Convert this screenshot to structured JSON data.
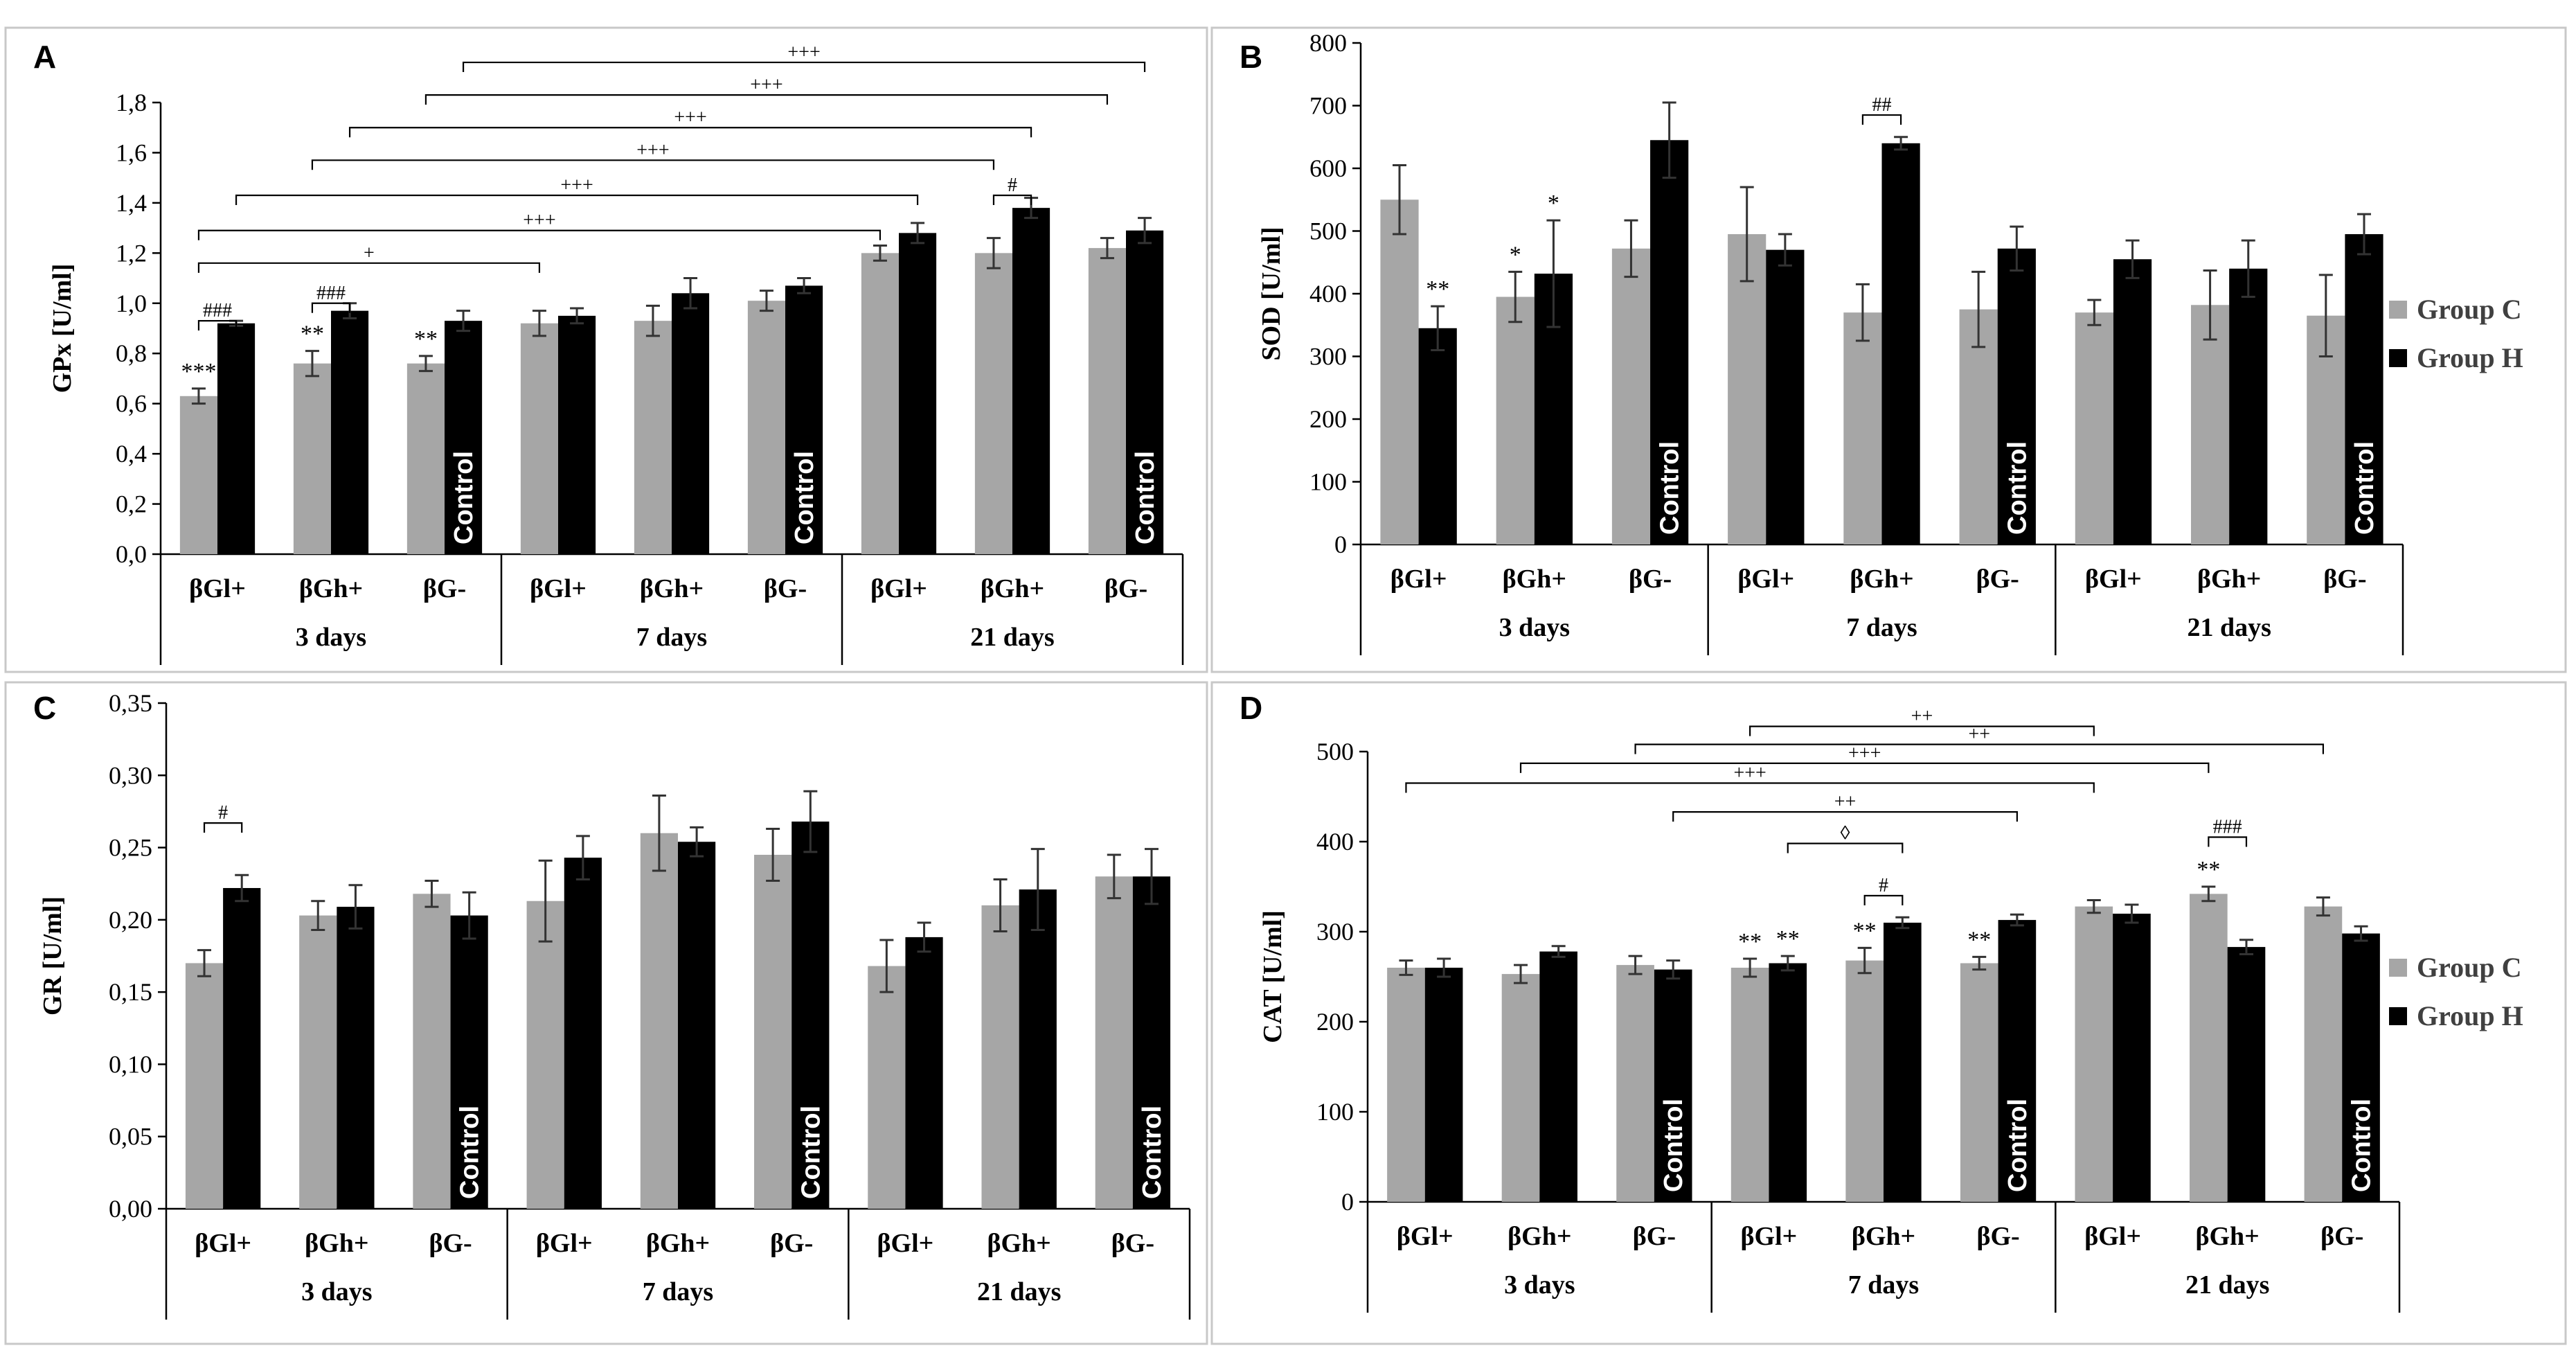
{
  "colors": {
    "group_c": "#a6a6a6",
    "group_h": "#000000"
  },
  "chart_data": [
    {
      "panel": "A",
      "type": "bar",
      "ylabel": "GPx [U/ml]",
      "ylim": [
        0,
        1.8
      ],
      "yticks": [
        "0,0",
        "0,2",
        "0,4",
        "0,6",
        "0,8",
        "1,0",
        "1,2",
        "1,4",
        "1,6",
        "1,8"
      ],
      "categories": [
        "βGl+",
        "βGh+",
        "βG-",
        "βGl+",
        "βGh+",
        "βG-",
        "βGl+",
        "βGh+",
        "βG-"
      ],
      "day_groups": [
        "3 days",
        "7 days",
        "21 days"
      ],
      "series": [
        {
          "values": [
            0.63,
            0.76,
            0.76,
            0.92,
            0.93,
            1.01,
            1.2,
            1.2,
            1.22
          ],
          "errors": [
            0.03,
            0.05,
            0.03,
            0.05,
            0.06,
            0.04,
            0.03,
            0.06,
            0.04
          ]
        },
        {
          "values": [
            0.92,
            0.97,
            0.93,
            0.95,
            1.04,
            1.07,
            1.28,
            1.38,
            1.29
          ],
          "errors": [
            0.01,
            0.03,
            0.04,
            0.03,
            0.06,
            0.03,
            0.04,
            0.04,
            0.05
          ]
        }
      ],
      "control_label": "Control",
      "control_indices": [
        2,
        5,
        8
      ],
      "annotations": [
        {
          "index": 0,
          "series": 0,
          "text": "***"
        },
        {
          "index": 1,
          "series": 0,
          "text": "**"
        },
        {
          "index": 2,
          "series": 0,
          "text": "**"
        }
      ],
      "brackets": [
        {
          "from": [
            0,
            0
          ],
          "to": [
            0,
            1
          ],
          "y": 0.93,
          "text": "###"
        },
        {
          "from": [
            1,
            0
          ],
          "to": [
            1,
            1
          ],
          "y": 1.0,
          "text": "###"
        },
        {
          "from": [
            0,
            0
          ],
          "to": [
            3,
            0
          ],
          "y": 1.16,
          "text": "+"
        },
        {
          "from": [
            0,
            0
          ],
          "to": [
            6,
            0
          ],
          "y": 1.29,
          "text": "+++"
        },
        {
          "from": [
            0,
            1
          ],
          "to": [
            6,
            1
          ],
          "y": 1.43,
          "text": "+++"
        },
        {
          "from": [
            7,
            0
          ],
          "to": [
            7,
            1
          ],
          "y": 1.43,
          "text": "#"
        },
        {
          "from": [
            1,
            0
          ],
          "to": [
            7,
            0
          ],
          "y": 1.57,
          "text": "+++"
        },
        {
          "from": [
            1,
            1
          ],
          "to": [
            7,
            1
          ],
          "y": 1.7,
          "text": "+++"
        },
        {
          "from": [
            2,
            0
          ],
          "to": [
            8,
            0
          ],
          "y": 1.83,
          "text": "+++"
        },
        {
          "from": [
            2,
            1
          ],
          "to": [
            8,
            1
          ],
          "y": 1.96,
          "text": "+++"
        }
      ]
    },
    {
      "panel": "B",
      "type": "bar",
      "ylabel": "SOD [U/ml]",
      "ylim": [
        0,
        800
      ],
      "yticks": [
        "0",
        "100",
        "200",
        "300",
        "400",
        "500",
        "600",
        "700",
        "800"
      ],
      "categories": [
        "βGl+",
        "βGh+",
        "βG-",
        "βGl+",
        "βGh+",
        "βG-",
        "βGl+",
        "βGh+",
        "βG-"
      ],
      "day_groups": [
        "3 days",
        "7 days",
        "21 days"
      ],
      "legend": [
        "Group C",
        "Group H"
      ],
      "series": [
        {
          "name": "Group C",
          "values": [
            550,
            395,
            472,
            495,
            370,
            375,
            370,
            382,
            365
          ],
          "errors": [
            55,
            40,
            45,
            75,
            45,
            60,
            20,
            55,
            65
          ]
        },
        {
          "name": "Group H",
          "values": [
            345,
            432,
            645,
            470,
            640,
            472,
            455,
            440,
            495
          ],
          "errors": [
            35,
            85,
            60,
            25,
            10,
            35,
            30,
            45,
            32
          ]
        }
      ],
      "control_label": "Control",
      "control_indices": [
        2,
        5,
        8
      ],
      "annotations": [
        {
          "index": 0,
          "series": 1,
          "text": "**"
        },
        {
          "index": 1,
          "series": 0,
          "text": "*"
        },
        {
          "index": 1,
          "series": 1,
          "text": "*"
        }
      ],
      "brackets": [
        {
          "from": [
            4,
            0
          ],
          "to": [
            4,
            1
          ],
          "y": 685,
          "text": "##"
        }
      ]
    },
    {
      "panel": "C",
      "type": "bar",
      "ylabel": "GR [U/ml]",
      "ylim": [
        0,
        0.35
      ],
      "yticks": [
        "0,00",
        "0,05",
        "0,10",
        "0,15",
        "0,20",
        "0,25",
        "0,30",
        "0,35"
      ],
      "categories": [
        "βGl+",
        "βGh+",
        "βG-",
        "βGl+",
        "βGh+",
        "βG-",
        "βGl+",
        "βGh+",
        "βG-"
      ],
      "day_groups": [
        "3 days",
        "7 days",
        "21 days"
      ],
      "series": [
        {
          "values": [
            0.17,
            0.203,
            0.218,
            0.213,
            0.26,
            0.245,
            0.168,
            0.21,
            0.23
          ],
          "errors": [
            0.009,
            0.01,
            0.009,
            0.028,
            0.026,
            0.018,
            0.018,
            0.018,
            0.015
          ]
        },
        {
          "values": [
            0.222,
            0.209,
            0.203,
            0.243,
            0.254,
            0.268,
            0.188,
            0.221,
            0.23
          ],
          "errors": [
            0.009,
            0.015,
            0.016,
            0.015,
            0.01,
            0.021,
            0.01,
            0.028,
            0.019
          ]
        }
      ],
      "control_label": "Control",
      "control_indices": [
        2,
        5,
        8
      ],
      "annotations": [],
      "brackets": [
        {
          "from": [
            0,
            0
          ],
          "to": [
            0,
            1
          ],
          "y": 0.267,
          "text": "#"
        }
      ]
    },
    {
      "panel": "D",
      "type": "bar",
      "ylabel": "CAT [U/ml]",
      "ylim": [
        0,
        500
      ],
      "yticks": [
        "0",
        "100",
        "200",
        "300",
        "400",
        "500"
      ],
      "categories": [
        "βGl+",
        "βGh+",
        "βG-",
        "βGl+",
        "βGh+",
        "βG-",
        "βGl+",
        "βGh+",
        "βG-"
      ],
      "day_groups": [
        "3 days",
        "7 days",
        "21 days"
      ],
      "legend": [
        "Group C",
        "Group H"
      ],
      "series": [
        {
          "name": "Group C",
          "values": [
            260,
            253,
            263,
            260,
            268,
            265,
            328,
            342,
            328
          ],
          "errors": [
            8,
            10,
            10,
            10,
            14,
            7,
            7,
            8,
            10
          ]
        },
        {
          "name": "Group H",
          "values": [
            260,
            278,
            258,
            265,
            310,
            313,
            320,
            283,
            298
          ],
          "errors": [
            10,
            6,
            10,
            8,
            6,
            6,
            10,
            8,
            8
          ]
        }
      ],
      "control_label": "Control",
      "control_indices": [
        2,
        5,
        8
      ],
      "annotations": [
        {
          "index": 3,
          "series": 0,
          "text": "**"
        },
        {
          "index": 3,
          "series": 1,
          "text": "**"
        },
        {
          "index": 4,
          "series": 0,
          "text": "**"
        },
        {
          "index": 5,
          "series": 0,
          "text": "**"
        },
        {
          "index": 7,
          "series": 0,
          "text": "**"
        }
      ],
      "brackets": [
        {
          "from": [
            7,
            0
          ],
          "to": [
            7,
            1
          ],
          "y": 405,
          "text": "###"
        },
        {
          "from": [
            4,
            0
          ],
          "to": [
            4,
            1
          ],
          "y": 340,
          "text": "#"
        },
        {
          "from": [
            3,
            1
          ],
          "to": [
            4,
            1
          ],
          "y": 398,
          "text": "◊"
        },
        {
          "from": [
            2,
            1
          ],
          "to": [
            5,
            1
          ],
          "y": 433,
          "text": "++"
        },
        {
          "from": [
            0,
            0
          ],
          "to": [
            6,
            0
          ],
          "y": 465,
          "text": "+++"
        },
        {
          "from": [
            1,
            0
          ],
          "to": [
            7,
            0
          ],
          "y": 487,
          "text": "+++"
        },
        {
          "from": [
            2,
            0
          ],
          "to": [
            8,
            0
          ],
          "y": 508,
          "text": "++"
        },
        {
          "from": [
            3,
            0
          ],
          "to": [
            6,
            0
          ],
          "y": 528,
          "text": "++"
        }
      ]
    }
  ]
}
